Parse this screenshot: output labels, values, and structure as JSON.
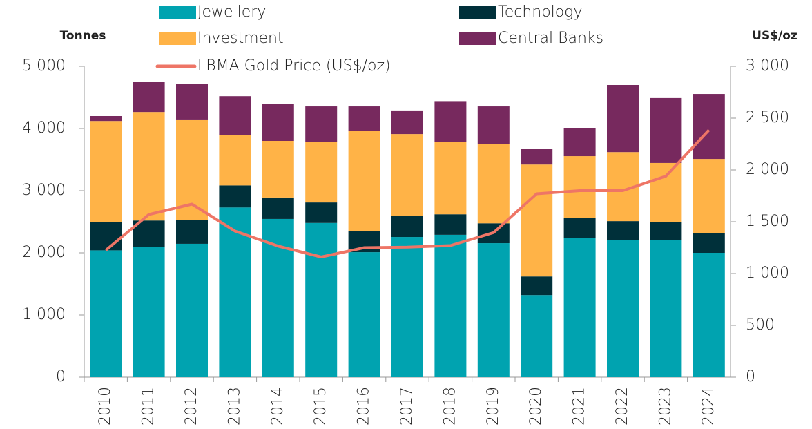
{
  "chart_data": {
    "type": "bar",
    "stacked": true,
    "categories": [
      "2010",
      "2011",
      "2012",
      "2013",
      "2014",
      "2015",
      "2016",
      "2017",
      "2018",
      "2019",
      "2020",
      "2021",
      "2022",
      "2023",
      "2024"
    ],
    "series": [
      {
        "name": "Jewellery",
        "color": "#00a3b0",
        "values": [
          2040,
          2090,
          2145,
          2730,
          2545,
          2480,
          2010,
          2255,
          2290,
          2155,
          1320,
          2235,
          2200,
          2200,
          2000
        ]
      },
      {
        "name": "Technology",
        "color": "#00303a",
        "values": [
          460,
          430,
          380,
          355,
          345,
          330,
          335,
          335,
          330,
          320,
          300,
          330,
          310,
          290,
          320
        ]
      },
      {
        "name": "Investment",
        "color": "#ffb347",
        "values": [
          1620,
          1745,
          1620,
          810,
          910,
          970,
          1620,
          1320,
          1165,
          1280,
          1800,
          990,
          1110,
          955,
          1190
        ]
      },
      {
        "name": "Central Banks",
        "color": "#77295e",
        "values": [
          80,
          480,
          570,
          625,
          600,
          575,
          390,
          380,
          655,
          600,
          255,
          455,
          1080,
          1045,
          1045
        ]
      },
      {
        "name": "LBMA Gold Price (US$/oz)",
        "color": "#ee7566",
        "type": "line",
        "axis": "y2",
        "values": [
          1225,
          1570,
          1670,
          1410,
          1265,
          1160,
          1250,
          1255,
          1270,
          1395,
          1770,
          1800,
          1800,
          1940,
          2385
        ]
      }
    ],
    "y_label": "Tonnes",
    "y2_label": "US$/oz",
    "ylim": [
      0,
      5000
    ],
    "yticks": [
      0,
      {
        "value": 1000,
        "label": "1 000"
      },
      {
        "value": 2000,
        "label": "2 000"
      },
      {
        "value": 3000,
        "label": "3 000"
      },
      {
        "value": 4000,
        "label": "4 000"
      },
      {
        "value": 5000,
        "label": "5 000"
      }
    ],
    "y2lim": [
      0,
      3000
    ],
    "y2ticks": [
      0,
      500,
      {
        "value": 1000,
        "label": "1 000"
      },
      {
        "value": 1500,
        "label": "1 500"
      },
      {
        "value": 2000,
        "label": "2 000"
      },
      {
        "value": 2500,
        "label": "2 500"
      },
      {
        "value": 3000,
        "label": "3 000"
      }
    ]
  }
}
